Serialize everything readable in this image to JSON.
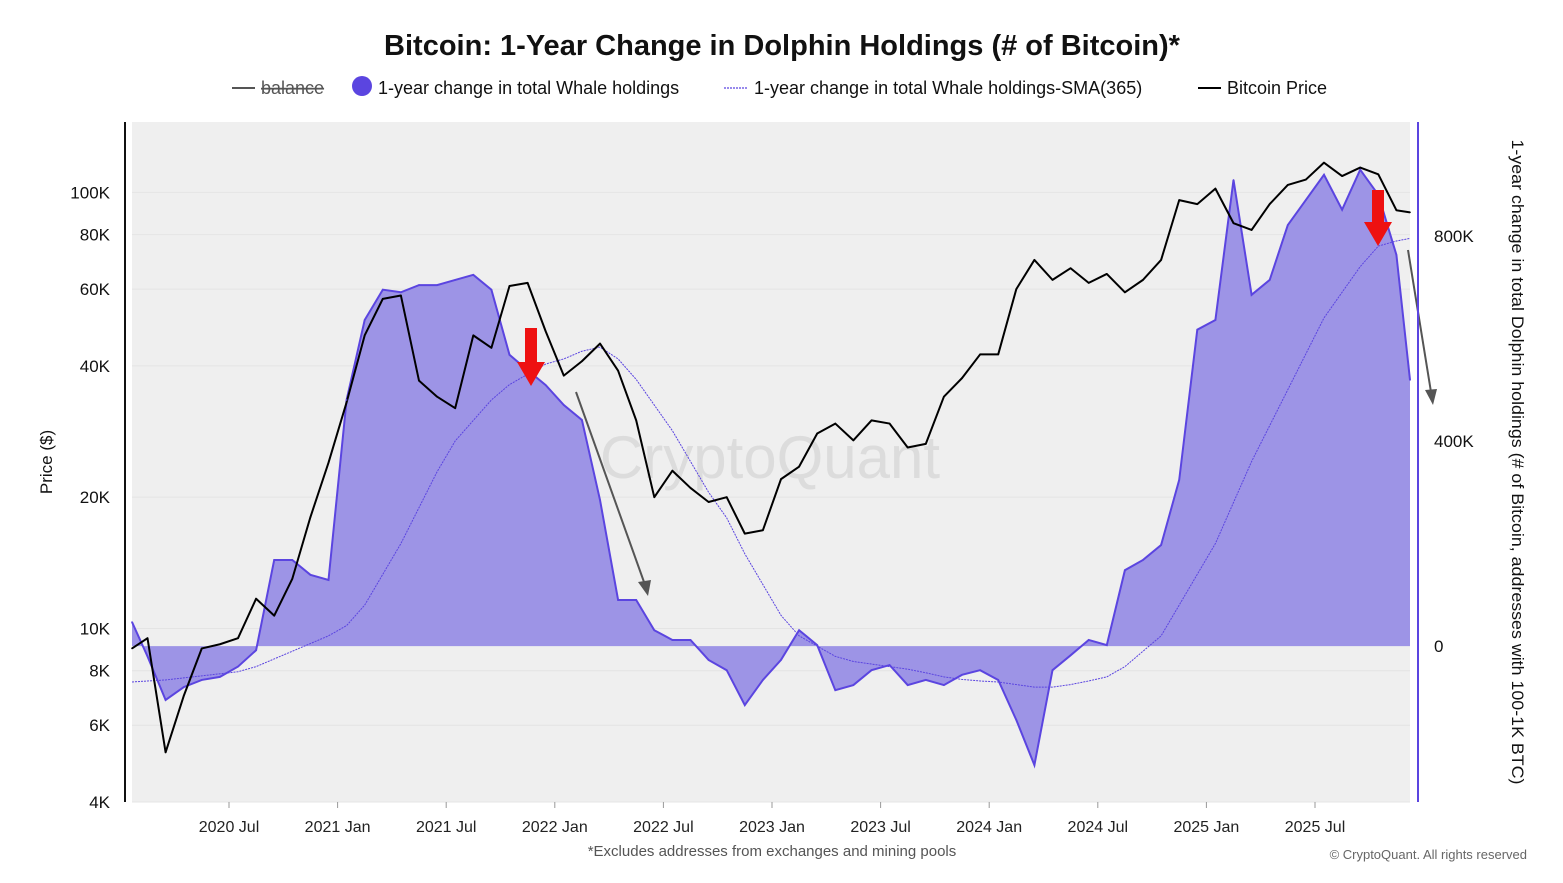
{
  "chart_data": {
    "type": "line",
    "title": "Bitcoin: 1-Year Change in Dolphin Holdings (# of Bitcoin)*",
    "legend": {
      "placement": "top",
      "items": [
        {
          "name": "balance",
          "style": "line",
          "color": "#555555",
          "hidden": true
        },
        {
          "name": "1-year change in total Whale holdings",
          "style": "area",
          "color": "#5b45e0"
        },
        {
          "name": "1-year change in total Whale holdings-SMA(365)",
          "style": "dotted-line",
          "color": "#5b45e0"
        },
        {
          "name": "Bitcoin Price",
          "style": "line",
          "color": "#000000"
        }
      ]
    },
    "ylabel_left": "Price ($)",
    "ylabel_right": "1-year change in total Dolphin holdings (# of Bitcoin, addresses with 100-1K BTC)",
    "y_left_scale": "log",
    "y_left_ticks": [
      "4K",
      "6K",
      "8K",
      "10K",
      "20K",
      "40K",
      "60K",
      "80K",
      "100K"
    ],
    "y_left_tick_values": [
      4000,
      6000,
      8000,
      10000,
      20000,
      40000,
      60000,
      80000,
      100000
    ],
    "y_left_range": [
      4000,
      145000
    ],
    "y_right_ticks": [
      "0",
      "400K",
      "800K"
    ],
    "y_right_tick_values": [
      0,
      400000,
      800000
    ],
    "y_right_range": [
      -304000,
      1022000
    ],
    "x_ticks": [
      "2020 Jul",
      "2021 Jan",
      "2021 Jul",
      "2022 Jan",
      "2022 Jul",
      "2023 Jan",
      "2023 Jul",
      "2024 Jan",
      "2024 Jul",
      "2025 Jan",
      "2025 Jul"
    ],
    "x_tick_dates": [
      "2020-07",
      "2021-01",
      "2021-07",
      "2022-01",
      "2022-07",
      "2023-01",
      "2023-07",
      "2024-01",
      "2024-07",
      "2025-01",
      "2025-07"
    ],
    "x_range": [
      "2020-01",
      "2025-12"
    ],
    "grid": true,
    "footnote": "*Excludes addresses from exchanges and mining pools",
    "copyright": "© CryptoQuant. All rights reserved",
    "watermark": "CryptoQuant",
    "colors": {
      "area_fill": "#9d94e6",
      "area_line": "#5b45e0",
      "price": "#000000",
      "plot_bg": "#efefef",
      "right_axis": "#5b45e0",
      "annotation_red": "#ee1111",
      "annotation_gray": "#555555"
    },
    "x": [
      "2020-01",
      "2020-02",
      "2020-03",
      "2020-04",
      "2020-05",
      "2020-06",
      "2020-07",
      "2020-08",
      "2020-09",
      "2020-10",
      "2020-11",
      "2020-12",
      "2021-01",
      "2021-02",
      "2021-03",
      "2021-04",
      "2021-05",
      "2021-06",
      "2021-07",
      "2021-08",
      "2021-09",
      "2021-10",
      "2021-11",
      "2021-12",
      "2022-01",
      "2022-02",
      "2022-03",
      "2022-04",
      "2022-05",
      "2022-06",
      "2022-07",
      "2022-08",
      "2022-09",
      "2022-10",
      "2022-11",
      "2022-12",
      "2023-01",
      "2023-02",
      "2023-03",
      "2023-04",
      "2023-05",
      "2023-06",
      "2023-07",
      "2023-08",
      "2023-09",
      "2023-10",
      "2023-11",
      "2023-12",
      "2024-01",
      "2024-02",
      "2024-03",
      "2024-04",
      "2024-05",
      "2024-06",
      "2024-07",
      "2024-08",
      "2024-09",
      "2024-10",
      "2024-11",
      "2024-12",
      "2025-01",
      "2025-02",
      "2025-03",
      "2025-04",
      "2025-05",
      "2025-06",
      "2025-07",
      "2025-08",
      "2025-09",
      "2025-10",
      "2025-11",
      "2025-12"
    ],
    "series": [
      {
        "name": "Bitcoin Price",
        "axis": "left",
        "values": [
          9000,
          9500,
          5200,
          7000,
          9000,
          9200,
          9500,
          11700,
          10700,
          13000,
          18000,
          24000,
          33000,
          47000,
          57000,
          58000,
          37000,
          34000,
          32000,
          47000,
          44000,
          61000,
          62000,
          48000,
          38000,
          41000,
          45000,
          39000,
          30000,
          20000,
          23000,
          21000,
          19500,
          20000,
          16500,
          16800,
          22000,
          23500,
          28000,
          29500,
          27000,
          30000,
          29500,
          26000,
          26500,
          34000,
          37500,
          42500,
          42500,
          60000,
          70000,
          63000,
          67000,
          62000,
          65000,
          59000,
          63000,
          70000,
          96000,
          94000,
          102000,
          85000,
          82000,
          94000,
          104000,
          107000,
          117000,
          109000,
          114000,
          110000,
          91000,
          90000
        ]
      },
      {
        "name": "1-year change in total Whale holdings",
        "axis": "right",
        "values": [
          47000,
          -20000,
          -105000,
          -80000,
          -66000,
          -60000,
          -40000,
          -8000,
          168000,
          168000,
          139000,
          129000,
          480000,
          636000,
          695000,
          690000,
          704000,
          704000,
          714000,
          724000,
          695000,
          568000,
          538000,
          509000,
          470000,
          441000,
          285000,
          90000,
          90000,
          31000,
          12000,
          12000,
          -27000,
          -47000,
          -115000,
          -66000,
          -27000,
          31000,
          2000,
          -86000,
          -76000,
          -47000,
          -37000,
          -76000,
          -66000,
          -76000,
          -56000,
          -47000,
          -66000,
          -144000,
          -232000,
          -47000,
          -18000,
          12000,
          2000,
          148000,
          168000,
          197000,
          324000,
          617000,
          636000,
          909000,
          685000,
          714000,
          821000,
          870000,
          919000,
          851000,
          929000,
          880000,
          763000,
          519000
        ]
      },
      {
        "name": "1-year change in total Whale holdings-SMA(365)",
        "axis": "right",
        "values": [
          -70000,
          -68000,
          -66000,
          -62000,
          -58000,
          -54000,
          -50000,
          -40000,
          -25000,
          -10000,
          5000,
          20000,
          40000,
          80000,
          140000,
          200000,
          270000,
          340000,
          400000,
          440000,
          480000,
          510000,
          530000,
          550000,
          560000,
          575000,
          583000,
          560000,
          520000,
          470000,
          420000,
          360000,
          300000,
          250000,
          180000,
          120000,
          60000,
          20000,
          0,
          -20000,
          -30000,
          -35000,
          -40000,
          -45000,
          -52000,
          -60000,
          -65000,
          -68000,
          -70000,
          -75000,
          -80000,
          -80000,
          -75000,
          -68000,
          -60000,
          -40000,
          -10000,
          20000,
          80000,
          140000,
          200000,
          280000,
          360000,
          430000,
          500000,
          570000,
          640000,
          690000,
          740000,
          780000,
          790000,
          795000
        ]
      }
    ]
  }
}
